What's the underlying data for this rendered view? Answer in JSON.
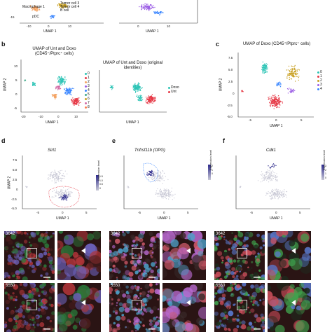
{
  "panel_a_labels": {
    "cluster_labels": [
      "Macrophage 1",
      "Tumor cell 3",
      "Tumor cell 4",
      "B cell"
    ],
    "pdc": "pDC",
    "xlabel": "UMAP 1",
    "x_ticks": [
      "-10",
      "0",
      "10"
    ],
    "y_tick": "-15"
  },
  "panel_a_right": {
    "xlabel": "UMAP 1",
    "x_ticks": [
      "0",
      "10"
    ]
  },
  "panel_b": {
    "letter": "b",
    "left_title": "UMAP of Unt and Doxo (CD45⁺/Ptprc⁺ cells)",
    "right_title": "UMAP of Unt and Doxo (original identities)",
    "xlabel": "UMAP 1",
    "ylabel": "UMAP 2",
    "x_ticks": [
      "-20",
      "-10",
      "0",
      "10"
    ],
    "y_ticks": [
      "10",
      "5",
      "0",
      "-5"
    ],
    "left_legend": [
      "0",
      "1",
      "2",
      "3",
      "4",
      "5",
      "6",
      "7",
      "8"
    ],
    "right_legend": [
      "Doxo",
      "Unt"
    ]
  },
  "panel_c": {
    "letter": "c",
    "title": "UMAP of Doxo (CD45⁺/Ptprc⁺ cells)",
    "xlabel": "UMAP 1",
    "ylabel": "UMAP 2",
    "x_ticks": [
      "-5",
      "0",
      "5"
    ],
    "y_ticks": [
      "7.5",
      "5.0",
      "2.5",
      "0",
      "-2.5",
      "-5.0"
    ],
    "legend": [
      "0",
      "1",
      "2",
      "3",
      "4"
    ]
  },
  "panel_d": {
    "letter": "d",
    "gene": "Sirt1",
    "xlabel": "UMAP 1",
    "ylabel": "UMAP 2",
    "x_ticks": [
      "-5",
      "0",
      "5"
    ],
    "y_ticks": [
      "7.5",
      "5.0",
      "2.5",
      "0",
      "-2.5",
      "-5.0"
    ],
    "scale_label": "Expression level",
    "scale_ticks": [
      "0",
      "0.5",
      "1.0",
      "1.5"
    ]
  },
  "panel_e": {
    "letter": "e",
    "gene": "Tnfrsf11b (OPG)",
    "xlabel": "UMAP 1",
    "x_ticks": [
      "-5",
      "0",
      "5"
    ],
    "scale_label": "Expression level",
    "scale_ticks": [
      "0",
      "1",
      "2"
    ]
  },
  "panel_f": {
    "letter": "f",
    "gene": "Cdk1",
    "xlabel": "UMAP 1",
    "x_ticks": [
      "-5",
      "0",
      "5"
    ],
    "scale_label": "Expression level",
    "scale_ticks": [
      "0",
      "1",
      "2",
      "3"
    ]
  },
  "micrographs": {
    "ids": [
      "3642",
      "3642",
      "3642",
      "5550",
      "5550",
      "5550"
    ]
  },
  "colors": {
    "cluster0": "#2ec4b6",
    "cluster1": "#e63946",
    "cluster2": "#f4a261",
    "cluster3": "#9b5de5",
    "cluster4": "#3a86ff",
    "cluster5": "#43aa8b",
    "cluster6": "#c9a227",
    "cluster7": "#d16ba5",
    "cluster8": "#ff7f50",
    "doxo": "#2ec4b6",
    "unt": "#e63946",
    "feature_low": "#c9c9d6",
    "feature_high": "#2d2a8c"
  }
}
